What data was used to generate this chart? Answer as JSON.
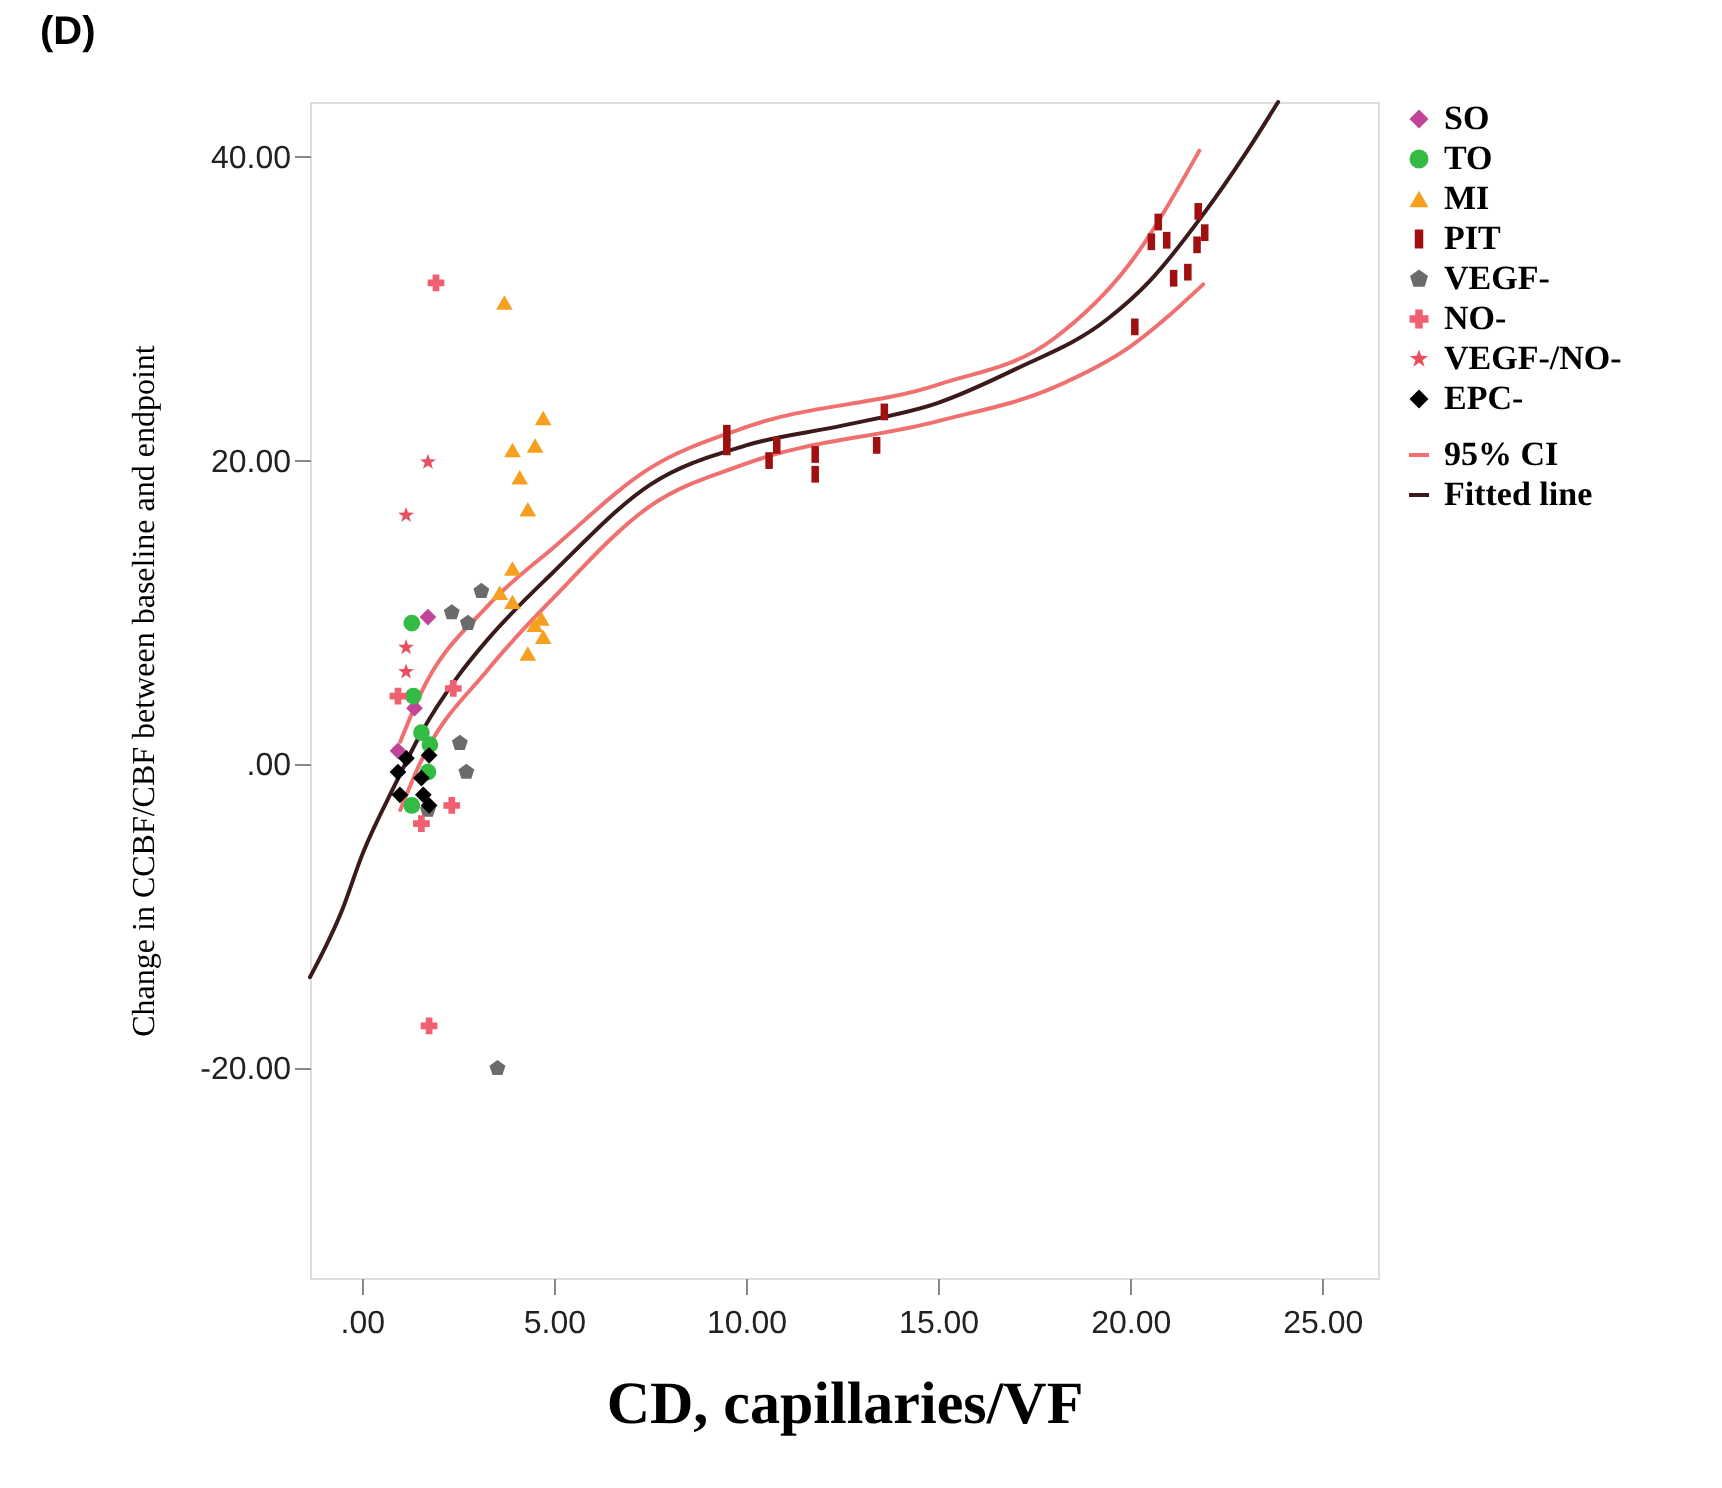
{
  "chart_data": {
    "type": "scatter",
    "xlabel": "CD, capillaries/VF",
    "ylabel": "Change in CCBF/CBF between baseline and endpoint",
    "annotations": [
      "(D)"
    ],
    "xlim": [
      -1.35,
      26.45
    ],
    "ylim": [
      -33.8,
      43.6
    ],
    "xticks": [
      {
        "value": 0,
        "label": ".00"
      },
      {
        "value": 5,
        "label": "5.00"
      },
      {
        "value": 10,
        "label": "10.00"
      },
      {
        "value": 15,
        "label": "15.00"
      },
      {
        "value": 20,
        "label": "20.00"
      },
      {
        "value": 25,
        "label": "25.00"
      }
    ],
    "yticks": [
      {
        "value": -20,
        "label": "-20.00"
      },
      {
        "value": 0,
        "label": ".00"
      },
      {
        "value": 20,
        "label": "20.00"
      },
      {
        "value": 40,
        "label": "40.00"
      }
    ],
    "grid": false,
    "legend": "right",
    "series": [
      {
        "name": "SO",
        "type": "scatter",
        "marker": "diamond",
        "color": "#c0449a",
        "x": [
          1.72,
          1.37,
          0.94
        ],
        "values": [
          9.7,
          3.7,
          0.9
        ]
      },
      {
        "name": "TO",
        "type": "scatter",
        "marker": "circle",
        "color": "#33bb44",
        "x": [
          1.3,
          1.34,
          1.55,
          1.77,
          1.72,
          1.3
        ],
        "values": [
          9.3,
          4.5,
          2.1,
          1.3,
          -0.5,
          -2.7
        ]
      },
      {
        "name": "MI",
        "type": "scatter",
        "marker": "triangle",
        "color": "#f5a020",
        "x": [
          3.71,
          4.72,
          3.92,
          4.51,
          4.11,
          4.32,
          3.92,
          3.59,
          3.92,
          4.67,
          4.72,
          4.32,
          4.5
        ],
        "values": [
          30.4,
          22.8,
          20.7,
          21.0,
          18.9,
          16.8,
          12.9,
          11.3,
          10.7,
          9.6,
          8.4,
          7.3,
          9.2
        ]
      },
      {
        "name": "PIT",
        "type": "scatter",
        "marker": "square",
        "color": "#a01010",
        "x": [
          20.12,
          21.13,
          21.5,
          20.73,
          20.55,
          20.95,
          21.77,
          21.94,
          21.74,
          9.5,
          9.5,
          10.6,
          10.8,
          11.8,
          11.8,
          13.4,
          13.6
        ],
        "values": [
          28.8,
          32.0,
          32.4,
          35.7,
          34.4,
          34.5,
          36.4,
          35.0,
          34.2,
          21.8,
          20.9,
          20.0,
          21.0,
          20.4,
          19.1,
          21.0,
          23.2
        ]
      },
      {
        "name": "VEGF-",
        "type": "scatter",
        "color": "#6b6b6b",
        "x": [
          3.11,
          2.34,
          2.76,
          2.55,
          2.72,
          3.53,
          1.72
        ],
        "values": [
          11.4,
          10.0,
          9.3,
          1.4,
          -0.5,
          -20.0,
          -3.0
        ]
      },
      {
        "name": "NO-",
        "type": "scatter",
        "marker": "cross",
        "color": "#f06070",
        "x": [
          1.93,
          1.75,
          2.34,
          1.55,
          2.38,
          0.94
        ],
        "values": [
          31.7,
          -17.2,
          -2.7,
          -3.9,
          5.0,
          4.5
        ]
      },
      {
        "name": "VEGF-/NO-",
        "type": "scatter",
        "marker": "star",
        "color": "#e85060",
        "x": [
          1.72,
          1.15,
          1.15,
          1.15
        ],
        "values": [
          19.9,
          16.4,
          7.7,
          6.1
        ]
      },
      {
        "name": "EPC-",
        "type": "scatter",
        "marker": "diamond",
        "color": "#000000",
        "x": [
          0.94,
          0.99,
          1.16,
          1.55,
          1.6,
          1.75,
          1.75
        ],
        "values": [
          -0.5,
          -2.0,
          0.4,
          -0.9,
          -2.0,
          -2.7,
          0.6
        ]
      },
      {
        "name": "95% CI",
        "type": "line",
        "color": "#f07070",
        "x": [
          1.0,
          1.5,
          3.3,
          5,
          7.5,
          10,
          15,
          18,
          20,
          21.8
        ],
        "values": [
          1.5,
          4.5,
          10.5,
          14.3,
          19.5,
          22.2,
          25,
          28,
          33,
          40.4
        ]
      },
      {
        "type": "line",
        "color": "#f07070",
        "x": [
          1.0,
          1.5,
          3.3,
          5,
          7.5,
          10,
          15,
          18,
          20,
          21.9
        ],
        "values": [
          -3.0,
          0,
          6.3,
          11,
          17,
          19.8,
          22.6,
          24.8,
          27.5,
          31.6
        ]
      },
      {
        "name": "Fitted line",
        "type": "line",
        "color": "#3a1a1a",
        "x": [
          -1.35,
          -0.5,
          0,
          0.85,
          1.55,
          2.5,
          3.3,
          5,
          7.5,
          10,
          12.5,
          15,
          17,
          19.4,
          20.5,
          21.9,
          23,
          23.85
        ],
        "values": [
          -14,
          -9.5,
          -6,
          -1.4,
          2.1,
          5.8,
          8.3,
          12.7,
          18.4,
          21.0,
          22.3,
          23.8,
          26,
          29.3,
          31.8,
          36.2,
          40.2,
          43.6
        ]
      }
    ]
  }
}
